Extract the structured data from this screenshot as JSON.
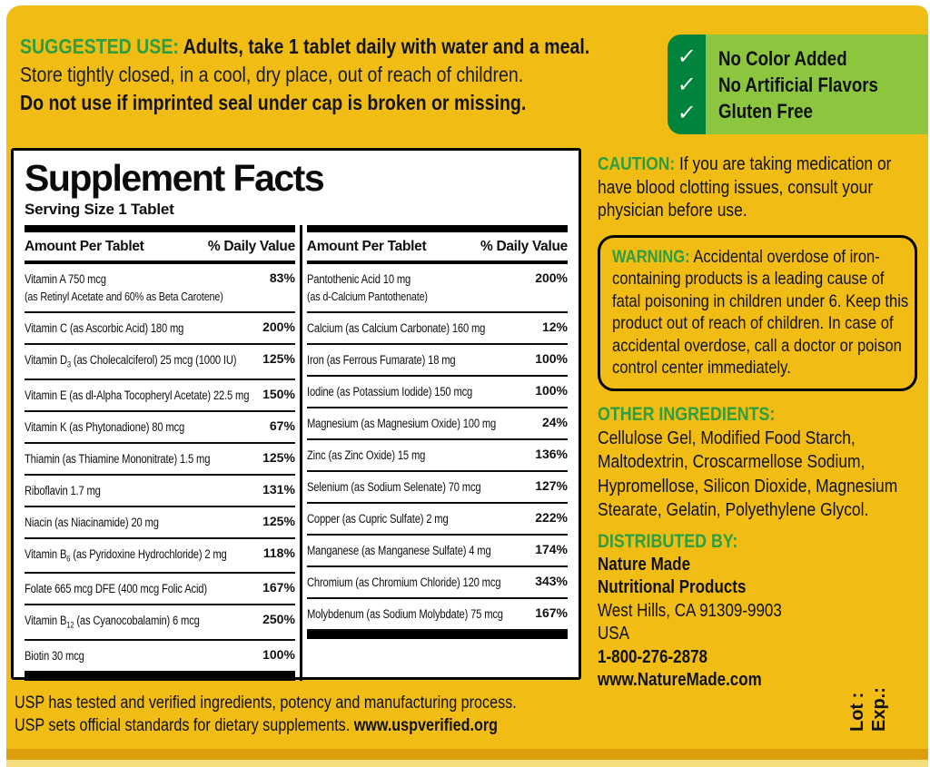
{
  "colors": {
    "label_yellow": "#F1BD15",
    "accent_green": "#2F9E3F",
    "claims_light_green": "#8CC63F",
    "claims_dark_green": "#00843D",
    "edge_dark": "#DD9E0E"
  },
  "suggested_use": {
    "heading": "SUGGESTED USE:",
    "line1_rest": " Adults, take 1 tablet daily with water and a meal.",
    "line2": "Store tightly closed, in a cool, dry place, out of reach of children.",
    "line3": "Do not use if imprinted seal under cap is broken or missing."
  },
  "claims": {
    "check_icon": "✓",
    "items": [
      "No Color Added",
      "No Artificial Flavors",
      "Gluten Free"
    ]
  },
  "supplement_facts": {
    "title": "Supplement Facts",
    "serving_size": "Serving Size 1 Tablet",
    "col_header_amount": "Amount Per Tablet",
    "col_header_dv": "% Daily Value",
    "left_rows": [
      {
        "name": "Vitamin A 750 mcg",
        "note": "(as Retinyl Acetate and 60% as Beta Carotene)",
        "dv": "83%"
      },
      {
        "name": "Vitamin C (as Ascorbic Acid) 180 mg",
        "dv": "200%"
      },
      {
        "name": "Vitamin D~3~ (as Cholecalciferol) 25 mcg (1000 IU)",
        "dv": "125%"
      },
      {
        "name": "Vitamin E (as dl-Alpha Tocopheryl Acetate) 22.5 mg",
        "dv": "150%"
      },
      {
        "name": "Vitamin K (as Phytonadione) 80 mcg",
        "dv": "67%"
      },
      {
        "name": "Thiamin (as Thiamine Mononitrate) 1.5 mg",
        "dv": "125%"
      },
      {
        "name": "Riboflavin 1.7 mg",
        "dv": "131%"
      },
      {
        "name": "Niacin (as Niacinamide) 20 mg",
        "dv": "125%"
      },
      {
        "name": "Vitamin B~6~ (as Pyridoxine Hydrochloride) 2 mg",
        "dv": "118%"
      },
      {
        "name": "Folate 665 mcg DFE (400 mcg Folic Acid)",
        "dv": "167%"
      },
      {
        "name": "Vitamin B~12~ (as Cyanocobalamin) 6 mcg",
        "dv": "250%"
      },
      {
        "name": "Biotin 30 mcg",
        "dv": "100%"
      }
    ],
    "right_rows": [
      {
        "name": "Pantothenic Acid 10 mg",
        "note": "(as d-Calcium Pantothenate)",
        "dv": "200%"
      },
      {
        "name": "Calcium (as Calcium Carbonate) 160 mg",
        "dv": "12%"
      },
      {
        "name": "Iron (as Ferrous Fumarate) 18 mg",
        "dv": "100%"
      },
      {
        "name": "Iodine (as Potassium Iodide) 150 mcg",
        "dv": "100%"
      },
      {
        "name": "Magnesium (as Magnesium Oxide) 100 mg",
        "dv": "24%"
      },
      {
        "name": "Zinc (as Zinc Oxide) 15 mg",
        "dv": "136%"
      },
      {
        "name": "Selenium (as Sodium Selenate) 70 mcg",
        "dv": "127%"
      },
      {
        "name": "Copper (as Cupric Sulfate) 2 mg",
        "dv": "222%"
      },
      {
        "name": "Manganese (as Manganese Sulfate) 4 mg",
        "dv": "174%"
      },
      {
        "name": "Chromium (as Chromium Chloride) 120 mcg",
        "dv": "343%"
      },
      {
        "name": "Molybdenum (as Sodium Molybdate) 75 mcg",
        "dv": "167%"
      }
    ]
  },
  "caution": {
    "heading": "CAUTION:",
    "text": " If you are taking medication or have blood clotting issues, consult your physician before use."
  },
  "warning": {
    "heading": "WARNING:",
    "text": " Accidental overdose of iron-containing products is a leading cause of fatal poisoning in children under 6. Keep this product out of reach of children. In case of accidental overdose, call a doctor or poison control center immediately."
  },
  "other_ingredients": {
    "heading": "OTHER INGREDIENTS:",
    "text": "Cellulose Gel, Modified Food Starch, Maltodextrin, Croscarmellose Sodium, Hypromellose, Silicon Dioxide, Magnesium Stearate, Gelatin, Polyethylene Glycol."
  },
  "distributed_by": {
    "heading": "DISTRIBUTED BY:",
    "lines": [
      {
        "text": "Nature Made",
        "bold": true
      },
      {
        "text": "Nutritional Products",
        "bold": true
      },
      {
        "text": "West Hills, CA 91309-9903",
        "bold": false
      },
      {
        "text": "USA",
        "bold": false
      },
      {
        "text": "1-800-276-2878",
        "bold": true
      },
      {
        "text": "www.NatureMade.com",
        "bold": true
      }
    ]
  },
  "usp": {
    "line1": "USP has tested and verified ingredients, potency and manufacturing process.",
    "line2_prefix": "USP sets official standards for dietary supplements. ",
    "line2_bold": "www.uspverified.org"
  },
  "lot_exp": {
    "lot": "Lot :",
    "exp": "Exp.:"
  }
}
